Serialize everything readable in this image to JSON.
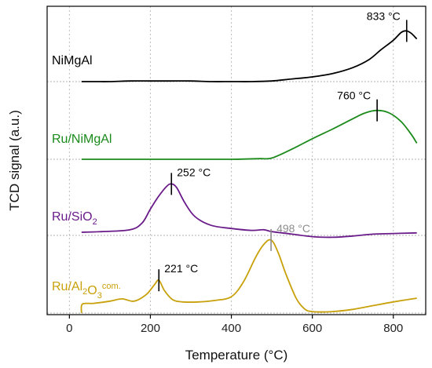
{
  "chart_data": {
    "type": "line",
    "xlabel": "Temperature (°C)",
    "ylabel": "TCD signal (a.u.)",
    "xlim": [
      -55,
      880
    ],
    "xticks": [
      "0",
      "200",
      "400",
      "600",
      "800"
    ],
    "xtick_values": [
      0,
      200,
      400,
      600,
      800
    ],
    "grid": "vertical dotted",
    "series": [
      {
        "name": "NiMgAl",
        "label_parts": [
          {
            "t": "NiMgAl",
            "s": "n"
          }
        ],
        "color": "#000000",
        "baseline": 0,
        "x": [
          30,
          60,
          100,
          150,
          200,
          250,
          300,
          350,
          400,
          450,
          500,
          550,
          600,
          650,
          700,
          740,
          770,
          800,
          820,
          833,
          845,
          858
        ],
        "y": [
          0,
          0,
          0,
          0.01,
          0.01,
          0.01,
          0.01,
          0,
          0,
          0,
          0.01,
          0.04,
          0.07,
          0.12,
          0.21,
          0.33,
          0.48,
          0.62,
          0.74,
          0.76,
          0.72,
          0.64
        ],
        "peak": {
          "x": 833,
          "label": "833 °C",
          "color": "#000000"
        }
      },
      {
        "name": "Ru/NiMgAl",
        "label_parts": [
          {
            "t": "Ru/NiMgAl",
            "s": "n"
          }
        ],
        "color": "#1a8a1a",
        "baseline": 0,
        "x": [
          30,
          100,
          200,
          300,
          400,
          470,
          500,
          550,
          600,
          650,
          700,
          730,
          760,
          790,
          820,
          845,
          858
        ],
        "y": [
          0,
          0,
          0,
          0,
          0,
          0.01,
          0.02,
          0.16,
          0.32,
          0.47,
          0.63,
          0.72,
          0.76,
          0.72,
          0.58,
          0.38,
          0.25
        ],
        "peak": {
          "x": 760,
          "label": "760 °C",
          "color": "#000000"
        }
      },
      {
        "name": "Ru/SiO2",
        "label_parts": [
          {
            "t": "Ru/SiO",
            "s": "n"
          },
          {
            "t": "2",
            "s": "sub"
          }
        ],
        "color": "#6a1b8a",
        "baseline": 0,
        "x": [
          30,
          80,
          150,
          180,
          200,
          220,
          240,
          252,
          265,
          285,
          310,
          350,
          400,
          450,
          480,
          500,
          550,
          600,
          650,
          700,
          750,
          800,
          858
        ],
        "y": [
          0.05,
          0.06,
          0.09,
          0.2,
          0.42,
          0.62,
          0.78,
          0.82,
          0.76,
          0.52,
          0.3,
          0.16,
          0.11,
          0.08,
          0.09,
          0.06,
          0.02,
          -0.02,
          -0.03,
          -0.01,
          0.02,
          0.03,
          0.04
        ],
        "peak": {
          "x": 252,
          "label": "252 °C",
          "color": "#000000"
        }
      },
      {
        "name": "Ru/Al2O3 com.",
        "label_parts": [
          {
            "t": "Ru/Al",
            "s": "n"
          },
          {
            "t": "2",
            "s": "sub"
          },
          {
            "t": "O",
            "s": "n"
          },
          {
            "t": "3",
            "s": "sub"
          },
          {
            "t": "com.",
            "s": "sup"
          }
        ],
        "color": "#c8a10a",
        "baseline": 0,
        "x": [
          30,
          32,
          60,
          100,
          130,
          160,
          190,
          210,
          221,
          235,
          255,
          280,
          320,
          360,
          400,
          430,
          460,
          480,
          498,
          515,
          535,
          560,
          580,
          600,
          650,
          700,
          750,
          800,
          858
        ],
        "y": [
          0,
          0.12,
          0.13,
          0.16,
          0.19,
          0.16,
          0.25,
          0.38,
          0.44,
          0.3,
          0.18,
          0.15,
          0.15,
          0.17,
          0.22,
          0.42,
          0.75,
          0.92,
          0.98,
          0.82,
          0.52,
          0.2,
          0.06,
          0.02,
          0.02,
          0.05,
          0.1,
          0.15,
          0.2
        ],
        "peak": {
          "x": 221,
          "label": "221 °C",
          "color": "#000000"
        },
        "peak2": {
          "x": 498,
          "label": "498 °C",
          "color": "#8c8c8c"
        }
      }
    ]
  }
}
